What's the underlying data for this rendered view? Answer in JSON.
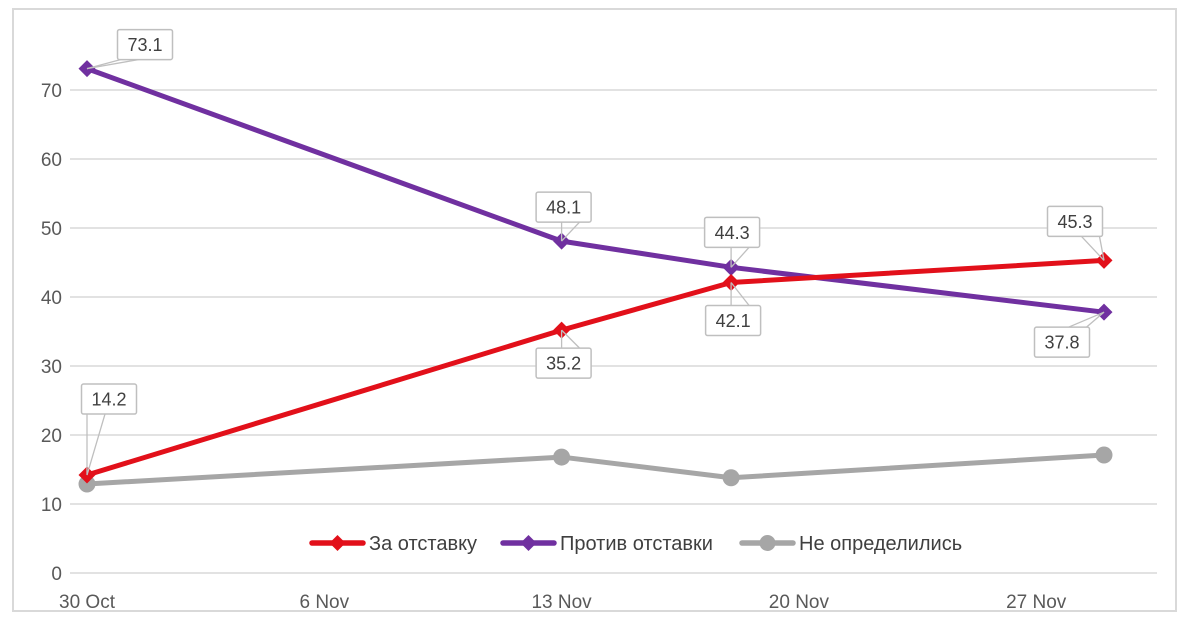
{
  "chart_data": {
    "type": "line",
    "title": "",
    "xlabel": "",
    "ylabel": "",
    "x_tick_labels": [
      "30 Oct",
      "6 Nov",
      "13 Nov",
      "20 Nov",
      "27 Nov"
    ],
    "x_tick_days": [
      0,
      7,
      14,
      21,
      28
    ],
    "point_dates": [
      "30 Oct",
      "13 Nov",
      "18 Nov",
      "29 Nov"
    ],
    "point_days": [
      0,
      14,
      19,
      30
    ],
    "y_ticks": [
      0,
      10,
      20,
      30,
      40,
      50,
      60,
      70
    ],
    "ylim": [
      0,
      78
    ],
    "grid": "horizontal",
    "legend_position": "bottom-center",
    "series": [
      {
        "id": "for-resignation",
        "name": "За отставку",
        "color": "#E2101A",
        "marker": "diamond",
        "values": [
          14.2,
          35.2,
          42.1,
          45.3
        ],
        "data_labels": [
          "14.2",
          "35.2",
          "42.1",
          "45.3"
        ],
        "label_sides": [
          "above",
          "below",
          "below",
          "above"
        ]
      },
      {
        "id": "against-resignation",
        "name": "Против отставки",
        "color": "#7030A0",
        "marker": "diamond",
        "values": [
          73.1,
          48.1,
          44.3,
          37.8
        ],
        "data_labels": [
          "73.1",
          "48.1",
          "44.3",
          "37.8"
        ],
        "label_sides": [
          "above",
          "above",
          "above",
          "below"
        ]
      },
      {
        "id": "undecided",
        "name": "Не определились",
        "color": "#A6A6A6",
        "marker": "circle",
        "values": [
          12.9,
          16.8,
          13.8,
          17.1
        ],
        "data_labels": [],
        "label_sides": []
      }
    ],
    "colors": {
      "background": "#FFFFFF",
      "frame_border": "#D9D9D9",
      "gridline": "#D9D9D9",
      "axis_text": "#595959",
      "legend_text": "#3F3F3F",
      "callout_border": "#BFBFBF",
      "callout_fill": "#FFFFFF",
      "callout_text": "#404040"
    }
  }
}
